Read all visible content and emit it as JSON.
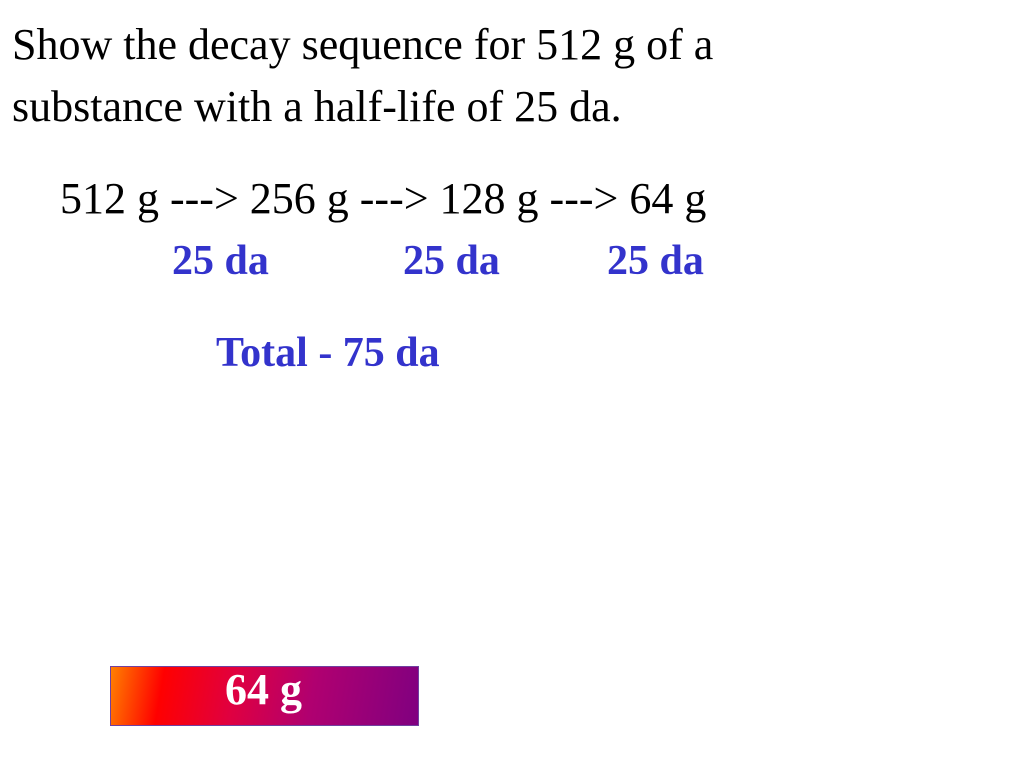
{
  "slide": {
    "title_line1": "Show the decay sequence for 512 g of a",
    "title_line2": "substance with a half-life of 25 da.",
    "sequence": "512 g ---> 256 g ---> 128 g ---> 64 g",
    "intervals": [
      "25 da",
      "25 da",
      "25 da"
    ],
    "total": "Total - 75 da",
    "remaining_box": {
      "label": "64 g",
      "gradient_colors": [
        "#ff8000",
        "#ff0000",
        "#800080"
      ]
    },
    "accent_color": "#3333cc"
  }
}
